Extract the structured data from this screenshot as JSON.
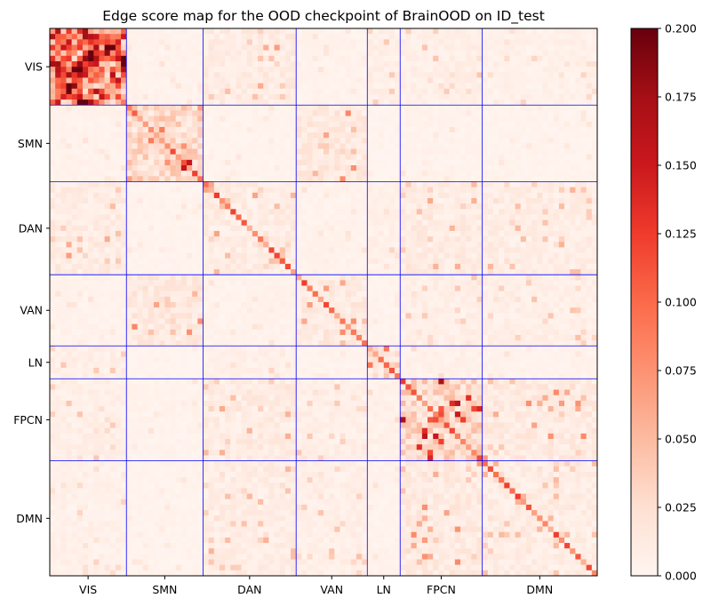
{
  "chart_data": {
    "type": "heatmap",
    "title": "Edge score map for the OOD checkpoint of BrainOOD on ID_test",
    "colormap": "Reds",
    "matrix_size": 100,
    "networks": [
      {
        "name": "VIS",
        "start": 0,
        "end": 14
      },
      {
        "name": "SMN",
        "start": 14,
        "end": 28
      },
      {
        "name": "DAN",
        "start": 28,
        "end": 45
      },
      {
        "name": "VAN",
        "start": 45,
        "end": 58
      },
      {
        "name": "LN",
        "start": 58,
        "end": 64
      },
      {
        "name": "FPCN",
        "start": 64,
        "end": 79
      },
      {
        "name": "DMN",
        "start": 79,
        "end": 100
      }
    ],
    "boundary_color": "#0000ff",
    "block_intensity": {
      "VIS": {
        "VIS": 0.11,
        "SMN": 0.004,
        "DAN": 0.012,
        "VAN": 0.004,
        "LN": 0.008,
        "FPCN": 0.008,
        "DMN": 0.006
      },
      "SMN": {
        "VIS": 0.004,
        "SMN": 0.03,
        "DAN": 0.003,
        "VAN": 0.015,
        "LN": 0.002,
        "FPCN": 0.004,
        "DMN": 0.003
      },
      "DAN": {
        "VIS": 0.012,
        "SMN": 0.003,
        "DAN": 0.012,
        "VAN": 0.004,
        "LN": 0.006,
        "FPCN": 0.012,
        "DMN": 0.01
      },
      "VAN": {
        "VIS": 0.004,
        "SMN": 0.015,
        "DAN": 0.004,
        "VAN": 0.014,
        "LN": 0.003,
        "FPCN": 0.008,
        "DMN": 0.008
      },
      "LN": {
        "VIS": 0.008,
        "SMN": 0.002,
        "DAN": 0.006,
        "VAN": 0.003,
        "LN": 0.02,
        "FPCN": 0.006,
        "DMN": 0.004
      },
      "FPCN": {
        "VIS": 0.008,
        "SMN": 0.004,
        "DAN": 0.012,
        "VAN": 0.008,
        "LN": 0.006,
        "FPCN": 0.03,
        "DMN": 0.014
      },
      "DMN": {
        "VIS": 0.006,
        "SMN": 0.003,
        "DAN": 0.01,
        "VAN": 0.008,
        "LN": 0.004,
        "FPCN": 0.014,
        "DMN": 0.01
      }
    },
    "diagonal_score": 0.09,
    "colorbar": {
      "vmin": 0.0,
      "vmax": 0.2,
      "ticks": [
        0.0,
        0.025,
        0.05,
        0.075,
        0.1,
        0.125,
        0.15,
        0.175,
        0.2
      ],
      "tick_labels": [
        "0.000",
        "0.025",
        "0.050",
        "0.075",
        "0.100",
        "0.125",
        "0.150",
        "0.175",
        "0.200"
      ]
    }
  }
}
